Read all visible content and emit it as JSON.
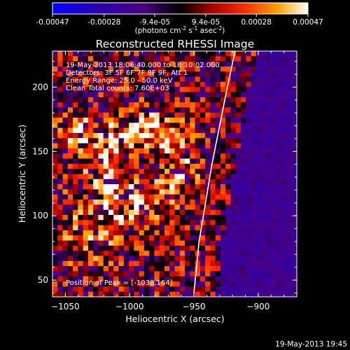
{
  "colorbar": {
    "ticks": [
      -0.00047,
      -0.00028,
      -9.4e-05,
      9.4e-05,
      0.00028,
      0.00047
    ],
    "tick_labels": [
      "-0.00047",
      "-0.00028",
      "-9.4e-05",
      "9.4e-05",
      "0.00028",
      "0.00047"
    ],
    "units_prefix": "(photons cm",
    "units_exp1": "-2",
    "units_mid": " s",
    "units_exp2": "-1",
    "units_mid2": " asec",
    "units_exp3": "-2",
    "units_suffix": ")"
  },
  "chart_data": {
    "type": "heatmap",
    "title": "Reconstructed RHESSI Image",
    "xlabel": "Heliocentric X (arcsec)",
    "ylabel": "Heliocentric Y (arcsec)",
    "xlim": [
      -1060,
      -870
    ],
    "ylim": [
      37,
      228
    ],
    "xticks": [
      -1050,
      -1000,
      -950,
      -900
    ],
    "xtick_labels": [
      "−1050",
      "−1000",
      "−950",
      "−900"
    ],
    "yticks": [
      50,
      100,
      150,
      200
    ],
    "ytick_labels": [
      "50",
      "100",
      "150",
      "200"
    ],
    "value_range": [
      -0.00047,
      0.00047
    ],
    "colormap": "rhessi",
    "limb_x": [
      -950,
      -946,
      -941,
      -936,
      -930,
      -924,
      -918
    ],
    "limb_y": [
      40,
      80,
      110,
      140,
      170,
      200,
      228
    ],
    "peak": [
      -1038,
      164
    ],
    "annotations": [
      "19-May-2013 18:06:40.000 to 18:10:02.000",
      "Detectors: 3F 5F 6F 7F 8F 9F, Att 1",
      "Energy Range: 25.0 - 50.0 keV",
      "Clean     Total counts: 7.60E+03"
    ],
    "peak_label": "Position of Peak = [-1038,164]"
  },
  "footer": {
    "timestamp": "19-May-2013 19:45"
  },
  "colors": {
    "axis": "#ffffff",
    "background": "#000000",
    "limb": "#ffffff"
  }
}
